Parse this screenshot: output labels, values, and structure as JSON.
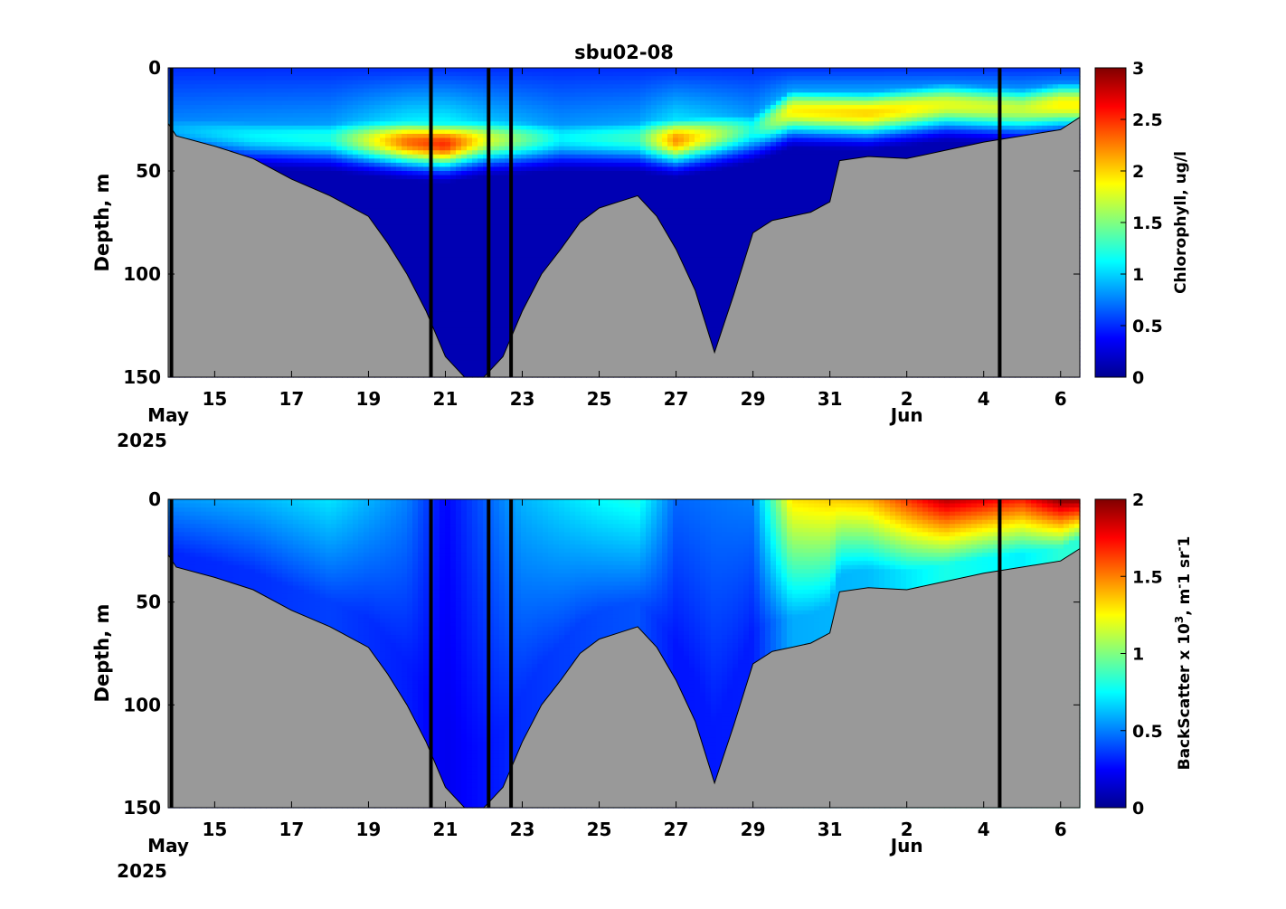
{
  "title": "sbu02-08",
  "colors": {
    "seafloor": "#999999",
    "deployment_line": "#000000",
    "colormap": "jet"
  },
  "chart_data": [
    {
      "type": "heatmap",
      "panel": "chlorophyll",
      "title": "sbu02-08",
      "ylabel": "Depth, m",
      "colorbar_label": "Chlorophyll, ug/l",
      "clim": [
        0,
        3
      ],
      "colorbar_ticks": [
        "0",
        "0.5",
        "1",
        "1.5",
        "2",
        "2.5",
        "3"
      ],
      "colorbar_tick_values": [
        0,
        0.5,
        1,
        1.5,
        2,
        2.5,
        3
      ],
      "ylim": [
        150,
        0
      ],
      "y_ticks": [
        "0",
        "50",
        "100",
        "150"
      ],
      "y_tick_values": [
        0,
        50,
        100,
        150
      ],
      "xlim": [
        "2025-05-13 19:00",
        "2025-06-06 12:00"
      ],
      "x_ticks": [
        "15",
        "17",
        "19",
        "21",
        "23",
        "25",
        "27",
        "29",
        "31",
        "2",
        "4",
        "6"
      ],
      "x_tick_dates": [
        "2025-05-15",
        "2025-05-17",
        "2025-05-19",
        "2025-05-21",
        "2025-05-23",
        "2025-05-25",
        "2025-05-27",
        "2025-05-29",
        "2025-05-31",
        "2025-06-02",
        "2025-06-04",
        "2025-06-06"
      ],
      "x_month_labels": [
        {
          "text": "May",
          "date": "2025-05-13 19:00"
        },
        {
          "text": "Jun",
          "date": "2025-06-02"
        }
      ],
      "x_year_label": "2025",
      "vertical_lines": [
        "2025-05-13 21:00",
        "2025-05-20 15:00",
        "2025-05-22 03:00",
        "2025-05-22 17:00",
        "2025-06-04 10:00"
      ],
      "layer_peaks": [
        {
          "date": "2025-05-14",
          "depth": 30,
          "value": 0.9
        },
        {
          "date": "2025-05-16",
          "depth": 33,
          "value": 1.1
        },
        {
          "date": "2025-05-18",
          "depth": 34,
          "value": 1.2
        },
        {
          "date": "2025-05-20",
          "depth": 36,
          "value": 2.3
        },
        {
          "date": "2025-05-21",
          "depth": 37,
          "value": 2.5
        },
        {
          "date": "2025-05-22",
          "depth": 35,
          "value": 1.8
        },
        {
          "date": "2025-05-24",
          "depth": 34,
          "value": 1.1
        },
        {
          "date": "2025-05-26",
          "depth": 34,
          "value": 1.3
        },
        {
          "date": "2025-05-27",
          "depth": 35,
          "value": 2.2
        },
        {
          "date": "2025-05-29",
          "depth": 30,
          "value": 1.2
        },
        {
          "date": "2025-05-30",
          "depth": 21,
          "value": 1.9
        },
        {
          "date": "2025-06-01",
          "depth": 22,
          "value": 2.0
        },
        {
          "date": "2025-06-03",
          "depth": 18,
          "value": 1.8
        },
        {
          "date": "2025-06-05",
          "depth": 20,
          "value": 1.7
        },
        {
          "date": "2025-06-06",
          "depth": 18,
          "value": 1.9
        }
      ],
      "surface_value": 0.5,
      "deep_value": 0.15
    },
    {
      "type": "heatmap",
      "panel": "backscatter",
      "ylabel": "Depth, m",
      "colorbar_label": "BackScatter x 10",
      "colorbar_label_sup": "3",
      "colorbar_label_mid": ", m",
      "colorbar_label_sup2": "-",
      "colorbar_label_mid2": "1 sr",
      "colorbar_label_sup3": "-",
      "colorbar_label_end": "1",
      "clim": [
        0,
        2
      ],
      "colorbar_ticks": [
        "0",
        "0.5",
        "1",
        "1.5",
        "2"
      ],
      "colorbar_tick_values": [
        0,
        0.5,
        1,
        1.5,
        2
      ],
      "ylim": [
        150,
        0
      ],
      "y_ticks": [
        "0",
        "50",
        "100",
        "150"
      ],
      "y_tick_values": [
        0,
        50,
        100,
        150
      ],
      "xlim": [
        "2025-05-13 19:00",
        "2025-06-06 12:00"
      ],
      "x_ticks": [
        "15",
        "17",
        "19",
        "21",
        "23",
        "25",
        "27",
        "29",
        "31",
        "2",
        "4",
        "6"
      ],
      "x_tick_dates": [
        "2025-05-15",
        "2025-05-17",
        "2025-05-19",
        "2025-05-21",
        "2025-05-23",
        "2025-05-25",
        "2025-05-27",
        "2025-05-29",
        "2025-05-31",
        "2025-06-02",
        "2025-06-04",
        "2025-06-06"
      ],
      "x_month_labels": [
        {
          "text": "May",
          "date": "2025-05-13 19:00"
        },
        {
          "text": "Jun",
          "date": "2025-06-02"
        }
      ],
      "x_year_label": "2025",
      "vertical_lines": [
        "2025-05-13 21:00",
        "2025-05-20 15:00",
        "2025-05-22 03:00",
        "2025-05-22 17:00",
        "2025-06-04 10:00"
      ],
      "surface_profile": [
        {
          "date": "2025-05-14",
          "value": 0.55
        },
        {
          "date": "2025-05-16",
          "value": 0.6
        },
        {
          "date": "2025-05-18",
          "value": 0.7
        },
        {
          "date": "2025-05-20",
          "value": 0.5
        },
        {
          "date": "2025-05-21",
          "value": 0.25
        },
        {
          "date": "2025-05-23",
          "value": 0.6
        },
        {
          "date": "2025-05-25",
          "value": 0.75
        },
        {
          "date": "2025-05-26",
          "value": 0.8
        },
        {
          "date": "2025-05-27",
          "value": 0.45
        },
        {
          "date": "2025-05-29",
          "value": 0.5
        },
        {
          "date": "2025-05-30",
          "value": 1.3
        },
        {
          "date": "2025-06-01",
          "value": 1.4
        },
        {
          "date": "2025-06-03",
          "value": 1.9
        },
        {
          "date": "2025-06-05",
          "value": 1.7
        },
        {
          "date": "2025-06-06",
          "value": 2.0
        }
      ],
      "deep_value": 0.2
    }
  ],
  "bathymetry": {
    "units": "m",
    "dates": [
      "2025-05-13 19:00",
      "2025-05-14",
      "2025-05-15",
      "2025-05-16",
      "2025-05-17",
      "2025-05-18",
      "2025-05-19",
      "2025-05-19 12:00",
      "2025-05-20",
      "2025-05-20 12:00",
      "2025-05-21",
      "2025-05-21 12:00",
      "2025-05-22",
      "2025-05-22 12:00",
      "2025-05-23",
      "2025-05-23 12:00",
      "2025-05-24",
      "2025-05-24 12:00",
      "2025-05-25",
      "2025-05-25 12:00",
      "2025-05-26",
      "2025-05-26 12:00",
      "2025-05-27",
      "2025-05-27 12:00",
      "2025-05-28",
      "2025-05-28 12:00",
      "2025-05-29",
      "2025-05-29 12:00",
      "2025-05-30",
      "2025-05-30 12:00",
      "2025-05-31",
      "2025-05-31 06:00",
      "2025-06-01",
      "2025-06-02",
      "2025-06-03",
      "2025-06-04",
      "2025-06-05",
      "2025-06-06",
      "2025-06-06 12:00"
    ],
    "depth": [
      27,
      33,
      38,
      44,
      54,
      62,
      72,
      85,
      100,
      118,
      140,
      150,
      150,
      140,
      118,
      100,
      88,
      75,
      68,
      65,
      62,
      72,
      88,
      108,
      138,
      110,
      80,
      74,
      72,
      70,
      65,
      45,
      43,
      44,
      40,
      36,
      33,
      30,
      24
    ]
  }
}
